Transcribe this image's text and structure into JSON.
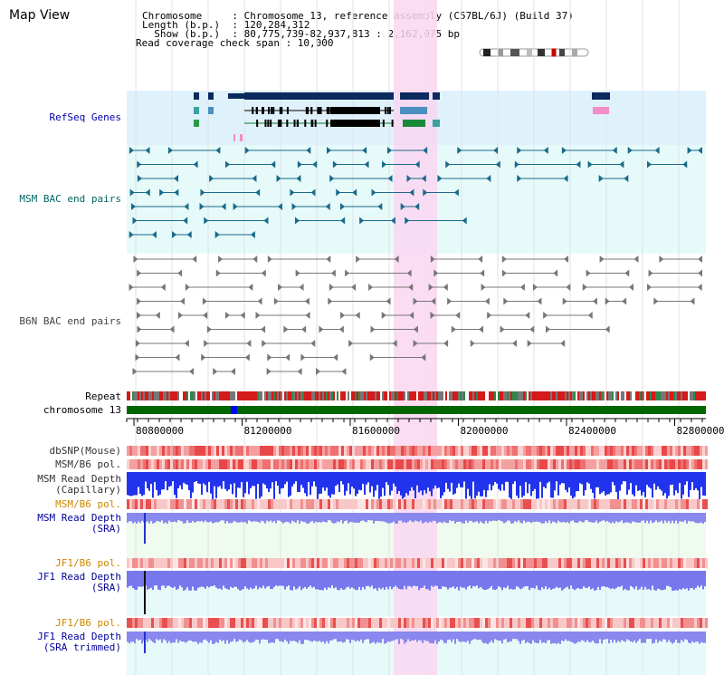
{
  "header": {
    "title": "Map View",
    "info_lines": [
      "Chromosome     : Chromosome 13, reference assembly (C57BL/6J) (Build 37)",
      "Length (b.p.)  : 120,284,312",
      "  Show (b.p.)  : 80,775,739-82,937,813 : 2,162,075 bp",
      "Read coverage check span : 10,000"
    ]
  },
  "tracks": {
    "refseq": "RefSeq Genes",
    "msm_bac": "MSM BAC end pairs",
    "b6n_bac": "B6N BAC end pairs",
    "repeat": "Repeat",
    "chromosome": "chromosome 13",
    "dbsnp": "dbSNP(Mouse)",
    "msm_b6_pol": "MSM/B6 pol.",
    "msm_read_depth_cap_1": "MSM Read Depth",
    "msm_read_depth_cap_2": "(Capillary)",
    "msm_b6_pol_2": "MSM/B6 pol.",
    "msm_read_depth_sra_1": "MSM Read Depth",
    "msm_read_depth_sra_2": "(SRA)",
    "jf1_b6_pol": "JF1/B6 pol.",
    "jf1_read_depth_sra_1": "JF1 Read Depth",
    "jf1_read_depth_sra_2": "(SRA)",
    "jf1_b6_pol_2": "JF1/B6 pol.",
    "jf1_read_depth_trim_1": "JF1 Read Depth",
    "jf1_read_depth_trim_2": "(SRA trimmed)"
  },
  "axis": {
    "ticks": [
      "80800000",
      "81200000",
      "81600000",
      "82000000",
      "82400000",
      "82800000"
    ]
  },
  "colors": {
    "title_blue": "#000099",
    "teal_label": "#006666",
    "gray_label": "#333333",
    "orange_label": "#cc8800",
    "highlight": "#f9d6f1",
    "refseq_bg": "#dff1fb",
    "msm_bg": "#e6fafa",
    "gene_dark": "#0a2a5e",
    "chromosome_green": "#006600"
  }
}
